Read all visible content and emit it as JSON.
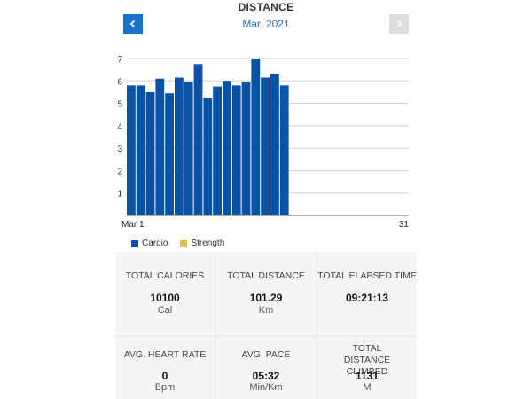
{
  "header": {
    "title": "DISTANCE",
    "period": "Mar, 2021",
    "prev_icon": "chevron-left-icon",
    "next_icon": "chevron-right-icon",
    "accent_color": "#1a73c8",
    "disabled_color": "#dddddd"
  },
  "chart_data": {
    "type": "bar",
    "x": [
      1,
      2,
      3,
      4,
      5,
      6,
      7,
      8,
      9,
      10,
      11,
      12,
      13,
      14,
      15,
      16,
      17
    ],
    "x_tick_labels": [
      "Mar 1",
      "31"
    ],
    "x_range": [
      1,
      31
    ],
    "ylim": [
      0,
      7
    ],
    "y_ticks": [
      1,
      2,
      3,
      4,
      5,
      6,
      7
    ],
    "grid": true,
    "series": [
      {
        "name": "Cardio",
        "color": "#0a52a6",
        "values": [
          5.8,
          5.8,
          5.5,
          6.1,
          5.45,
          6.15,
          5.95,
          6.75,
          5.25,
          5.75,
          6.0,
          5.8,
          5.95,
          7.0,
          6.15,
          6.3,
          5.8
        ]
      }
    ],
    "legend": [
      {
        "label": "Cardio",
        "color": "#0a52a6"
      },
      {
        "label": "Strength",
        "color": "#e8b84a"
      }
    ],
    "legend_position": "bottom-left"
  },
  "stats": [
    {
      "label": "TOTAL CALORIES",
      "value": "10100",
      "unit": "Cal"
    },
    {
      "label": "TOTAL DISTANCE",
      "value": "101.29",
      "unit": "Km"
    },
    {
      "label": "TOTAL ELAPSED TIME",
      "value": "09:21:13",
      "unit": ""
    },
    {
      "label": "AVG. HEART RATE",
      "value": "0",
      "unit": "Bpm"
    },
    {
      "label": "AVG. PACE",
      "value": "05:32",
      "unit": "Min/Km"
    },
    {
      "label": "TOTAL DISTANCE CLIMBED",
      "value": "1131",
      "unit": "M"
    }
  ]
}
